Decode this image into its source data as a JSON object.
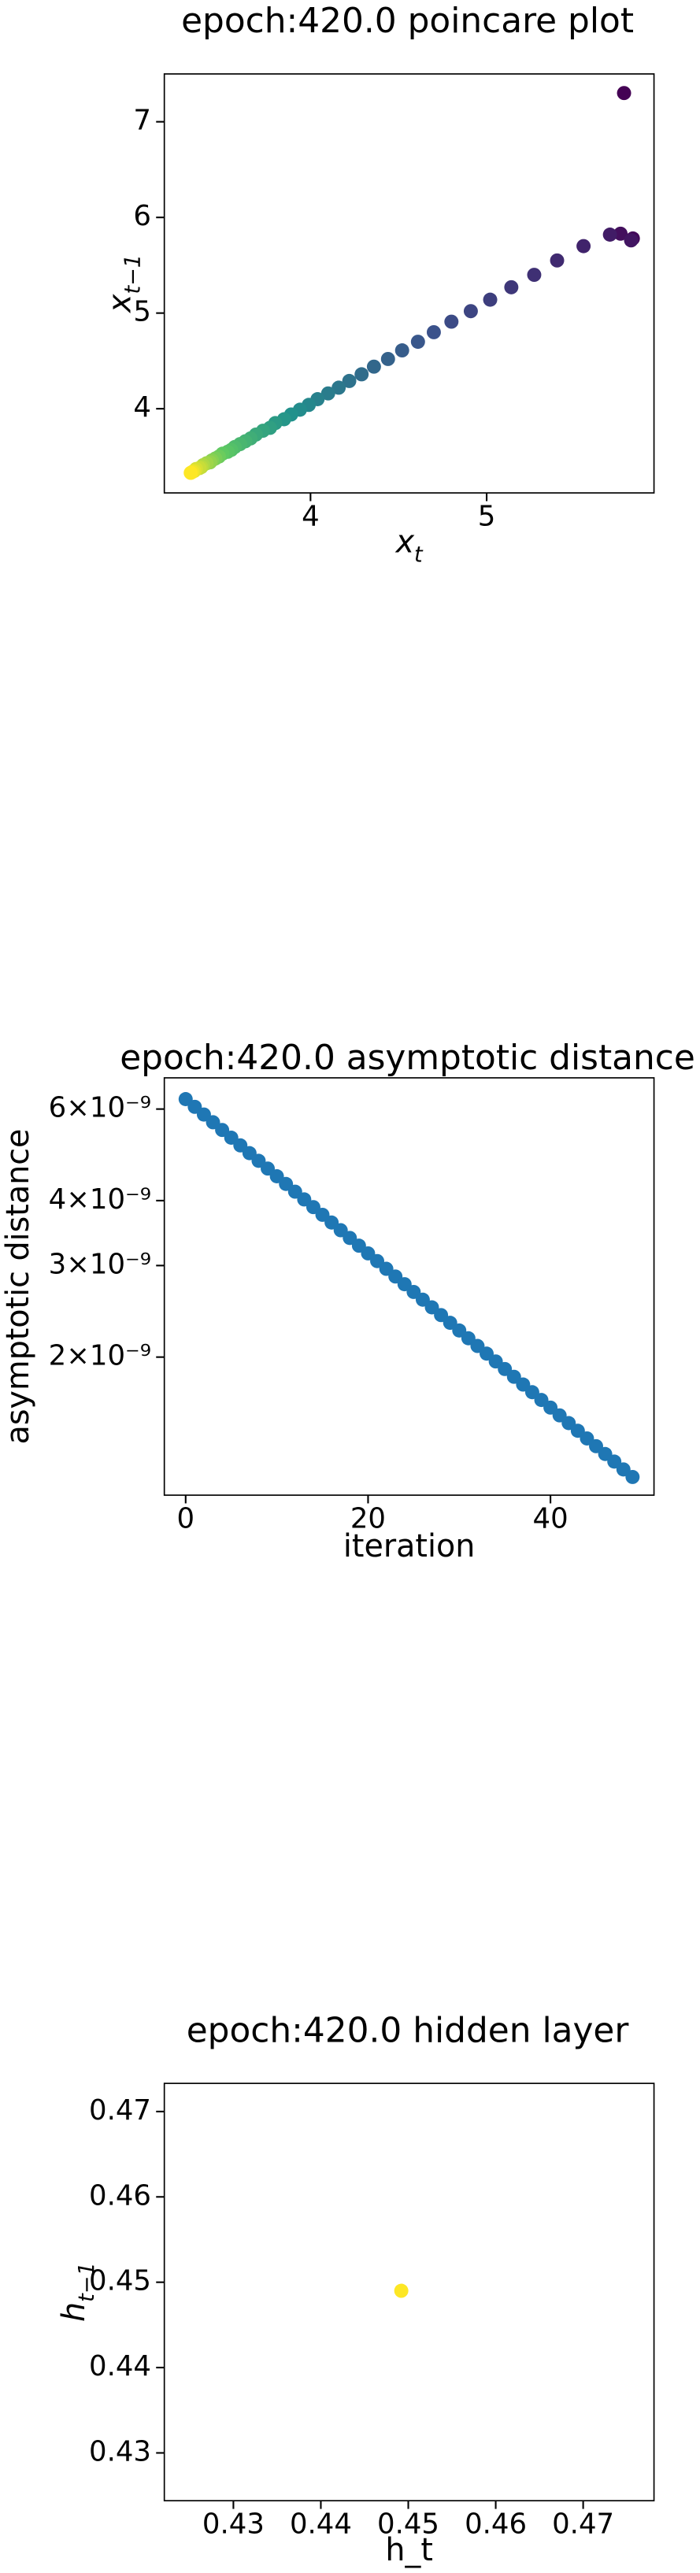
{
  "chart_data": [
    {
      "type": "scatter",
      "title": "epoch:420.0 poincare plot",
      "xlabel": {
        "text": "x",
        "sub": "t"
      },
      "ylabel": {
        "text": "x",
        "sub": "t−1"
      },
      "colormap": "viridis",
      "x": [
        5.78,
        5.83,
        5.76,
        5.82,
        5.7,
        5.55,
        5.4,
        5.27,
        5.14,
        5.02,
        4.91,
        4.8,
        4.7,
        4.61,
        4.52,
        4.44,
        4.36,
        4.29,
        4.22,
        4.16,
        4.1,
        4.04,
        3.99,
        3.94,
        3.89,
        3.85,
        3.8,
        3.77,
        3.73,
        3.69,
        3.66,
        3.63,
        3.6,
        3.57,
        3.55,
        3.53,
        3.5,
        3.48,
        3.46,
        3.44,
        3.43,
        3.41,
        3.39,
        3.38,
        3.37,
        3.35,
        3.34,
        3.33,
        3.32
      ],
      "values": [
        7.3,
        5.78,
        5.83,
        5.76,
        5.82,
        5.7,
        5.55,
        5.4,
        5.27,
        5.14,
        5.02,
        4.91,
        4.8,
        4.7,
        4.61,
        4.52,
        4.44,
        4.36,
        4.29,
        4.22,
        4.16,
        4.1,
        4.04,
        3.99,
        3.94,
        3.89,
        3.85,
        3.8,
        3.77,
        3.73,
        3.69,
        3.66,
        3.63,
        3.6,
        3.57,
        3.55,
        3.53,
        3.5,
        3.48,
        3.46,
        3.44,
        3.43,
        3.41,
        3.39,
        3.38,
        3.37,
        3.35,
        3.34,
        3.33
      ],
      "xlim": [
        3.17,
        5.95
      ],
      "xticks": [
        4,
        5
      ],
      "ylim": [
        3.12,
        7.5
      ],
      "yticks": [
        4,
        5,
        6,
        7
      ]
    },
    {
      "type": "scatter",
      "title": "epoch:420.0 asymptotic distance",
      "xlabel": {
        "text": "iteration"
      },
      "ylabel": {
        "text": "asymptotic distance"
      },
      "color": "#1f77b4",
      "yscale": "log",
      "x": [
        0,
        1,
        2,
        3,
        4,
        5,
        6,
        7,
        8,
        9,
        10,
        11,
        12,
        13,
        14,
        15,
        16,
        17,
        18,
        19,
        20,
        21,
        22,
        23,
        24,
        25,
        26,
        27,
        28,
        29,
        30,
        31,
        32,
        33,
        34,
        35,
        36,
        37,
        38,
        39,
        40,
        41,
        42,
        43,
        44,
        45,
        46,
        47,
        48,
        49
      ],
      "values": [
        6.27e-09,
        6.059e-09,
        5.856e-09,
        5.659e-09,
        5.469e-09,
        5.285e-09,
        5.108e-09,
        4.936e-09,
        4.771e-09,
        4.61e-09,
        4.455e-09,
        4.306e-09,
        4.161e-09,
        4.021e-09,
        3.886e-09,
        3.756e-09,
        3.63e-09,
        3.508e-09,
        3.39e-09,
        3.276e-09,
        3.166e-09,
        3.06e-09,
        2.957e-09,
        2.858e-09,
        2.762e-09,
        2.669e-09,
        2.579e-09,
        2.493e-09,
        2.409e-09,
        2.328e-09,
        2.25e-09,
        2.174e-09,
        2.101e-09,
        2.031e-09,
        1.962e-09,
        1.897e-09,
        1.833e-09,
        1.771e-09,
        1.712e-09,
        1.654e-09,
        1.599e-09,
        1.545e-09,
        1.493e-09,
        1.443e-09,
        1.395e-09,
        1.348e-09,
        1.302e-09,
        1.259e-09,
        1.216e-09,
        1.176e-09
      ],
      "xlim": [
        -2.34,
        51.35
      ],
      "xticks": [
        0,
        20,
        40
      ],
      "ylim": [
        1.085e-09,
        6.89e-09
      ],
      "yticks": [
        {
          "value": 6e-09,
          "label": "6×10⁻⁹"
        },
        {
          "value": 4e-09,
          "label": "4×10⁻⁹"
        },
        {
          "value": 3e-09,
          "label": "3×10⁻⁹"
        },
        {
          "value": 2e-09,
          "label": "2×10⁻⁹"
        }
      ]
    },
    {
      "type": "scatter",
      "title": "epoch:420.0 hidden layer",
      "xlabel": {
        "text": "h_t"
      },
      "ylabel": {
        "text": "h",
        "sub": "t−1"
      },
      "color": "#fde725",
      "x": [
        0.4492
      ],
      "values": [
        0.449
      ],
      "xlim": [
        0.4221,
        0.4781
      ],
      "xticks": [
        0.43,
        0.44,
        0.45,
        0.46,
        0.47
      ],
      "ylim": [
        0.4244,
        0.4733
      ],
      "yticks": [
        0.43,
        0.44,
        0.45,
        0.46,
        0.47
      ]
    }
  ]
}
